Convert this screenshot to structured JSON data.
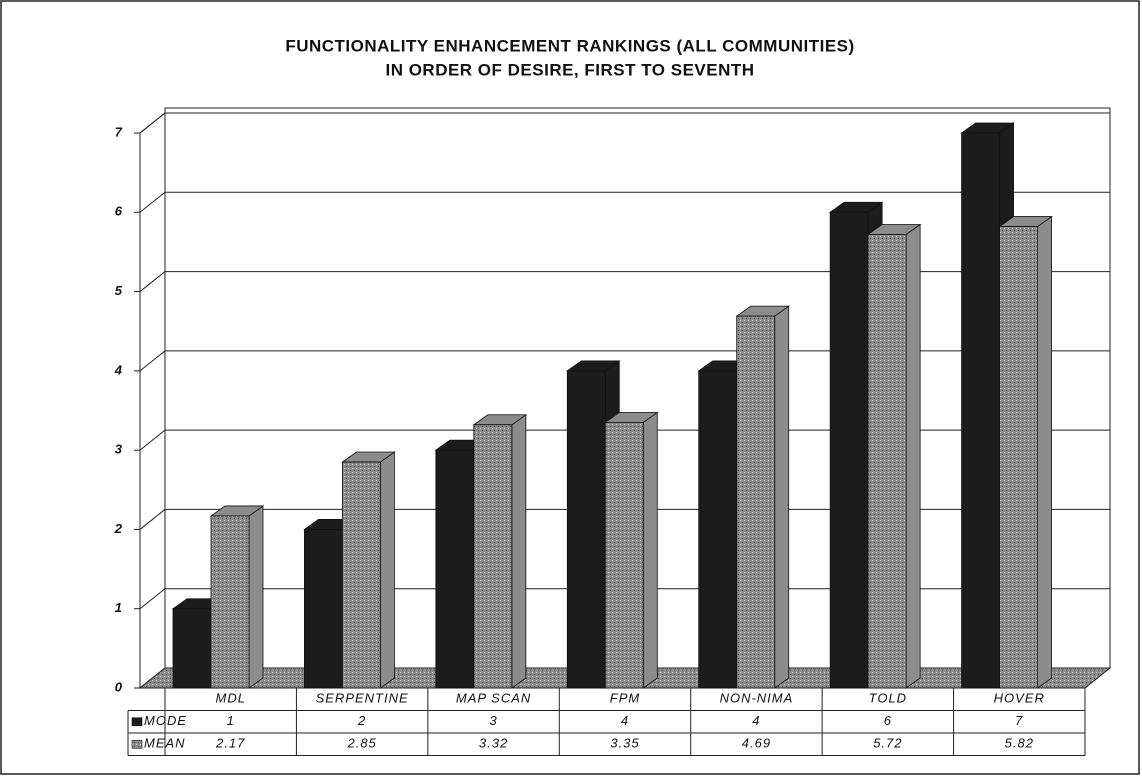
{
  "chart_data": {
    "type": "bar3d",
    "title": "FUNCTIONALITY ENHANCEMENT RANKINGS (ALL COMMUNITIES)",
    "subtitle": "IN ORDER OF DESIRE, FIRST TO SEVENTH",
    "categories": [
      "MDL",
      "SERPENTINE",
      "MAP SCAN",
      "FPM",
      "NON-NIMA",
      "TOLD",
      "HOVER"
    ],
    "series": [
      {
        "name": "MODE",
        "color": "#1c1c1c",
        "values": [
          1,
          2,
          3,
          4,
          4,
          6,
          7
        ]
      },
      {
        "name": "MEAN",
        "color": "#8c8c8c",
        "values": [
          2.17,
          2.85,
          3.32,
          3.35,
          4.69,
          5.72,
          5.82
        ]
      }
    ],
    "ylim": [
      0,
      7
    ],
    "yticks": [
      0,
      1,
      2,
      3,
      4,
      5,
      6,
      7
    ],
    "grid": true
  }
}
